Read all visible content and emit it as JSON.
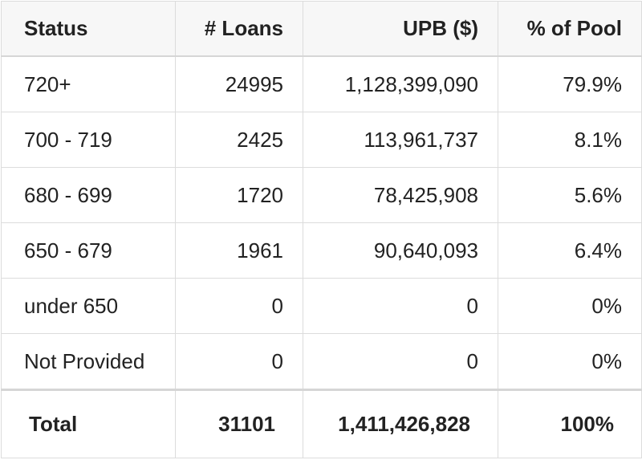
{
  "table": {
    "headers": [
      "Status",
      "# Loans",
      "UPB ($)",
      "% of Pool"
    ],
    "rows": [
      [
        "720+",
        "24995",
        "1,128,399,090",
        "79.9%"
      ],
      [
        "700 - 719",
        "2425",
        "113,961,737",
        "8.1%"
      ],
      [
        "680 - 699",
        "1720",
        "78,425,908",
        "5.6%"
      ],
      [
        "650 - 679",
        "1961",
        "90,640,093",
        "6.4%"
      ],
      [
        "under 650",
        "0",
        "0",
        "0%"
      ],
      [
        "Not Provided",
        "0",
        "0",
        "0%"
      ]
    ],
    "total": [
      "Total",
      "31101",
      "1,411,426,828",
      "100%"
    ]
  }
}
